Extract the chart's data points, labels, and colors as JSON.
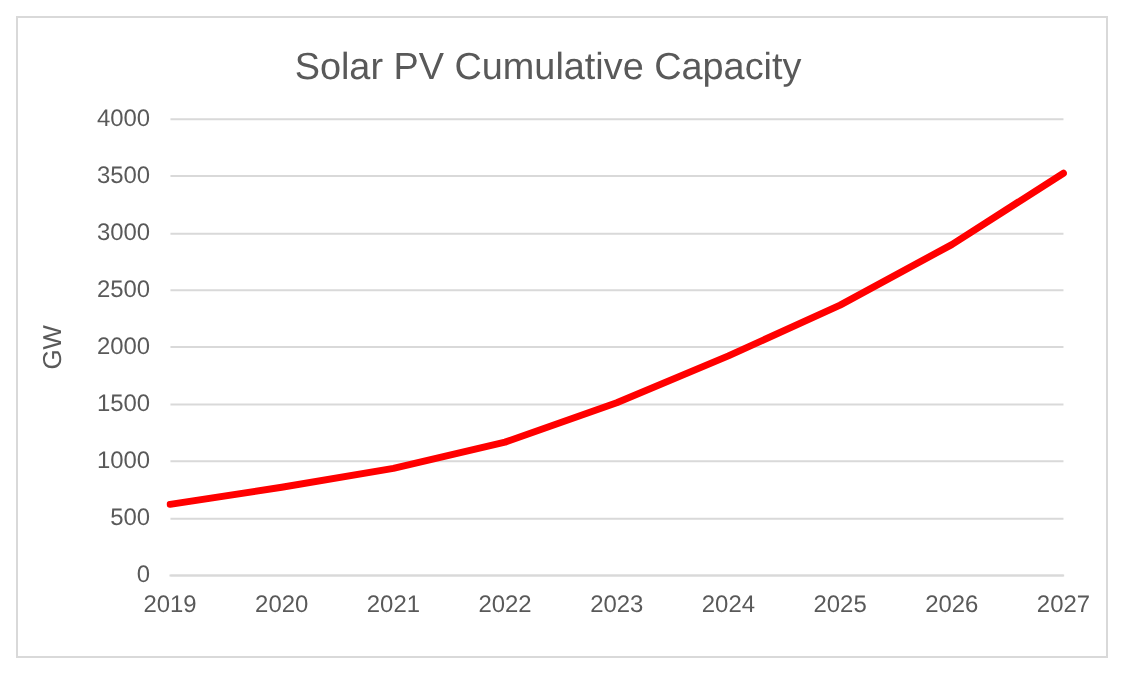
{
  "chart_data": {
    "type": "line",
    "title": "Solar PV Cumulative Capacity",
    "ylabel": "GW",
    "categories": [
      "2019",
      "2020",
      "2021",
      "2022",
      "2023",
      "2024",
      "2025",
      "2026",
      "2027"
    ],
    "series": [
      {
        "color": "#ff0000",
        "values": [
          625,
          775,
          940,
          1170,
          1515,
          1925,
          2370,
          2900,
          3525
        ]
      }
    ],
    "ylim": [
      0,
      4000
    ],
    "yticks": [
      0,
      500,
      1000,
      1500,
      2000,
      2500,
      3000,
      3500,
      4000
    ],
    "grid": "y",
    "legend": false,
    "marker": "none"
  }
}
